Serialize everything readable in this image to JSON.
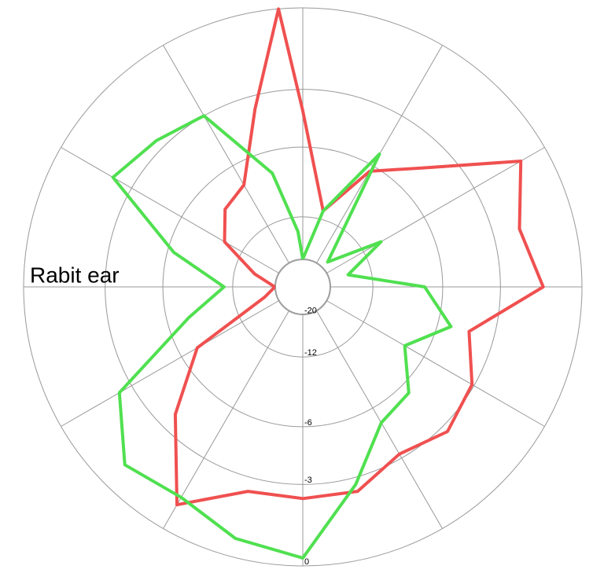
{
  "chart_data": {
    "type": "polar",
    "radial_scale": "amplitude-db",
    "annotation": "Rabit ear",
    "rlim": [
      -20,
      0
    ],
    "rticks": [
      -20,
      -12,
      -6,
      -3,
      0
    ],
    "theta": [
      0,
      15,
      30,
      45,
      60,
      75,
      90,
      105,
      120,
      135,
      150,
      165,
      180,
      195,
      210,
      225,
      240,
      255,
      270,
      285,
      300,
      315,
      330,
      345,
      355
    ],
    "series": [
      {
        "color": "#f05050",
        "values": [
          -4.0,
          -11,
          -6.4,
          -4.4,
          -0.9,
          -1.9,
          -1.3,
          -4.2,
          -3.1,
          -2.7,
          -3.2,
          -2.4,
          -2.4,
          -2.4,
          -0.9,
          -3.8,
          -7.2,
          -17,
          -20,
          -15,
          -9.8,
          -8.1,
          -7.5,
          -3.6,
          0
        ]
      },
      {
        "color": "#50e050",
        "values": [
          -20,
          -11,
          -5.2,
          -18,
          -9.8,
          -15.5,
          -7.2,
          -5.2,
          -7.5,
          -5.4,
          -5.0,
          -2.7,
          -0.25,
          -0.6,
          -1.2,
          -0.9,
          -2.4,
          -7.5,
          -11,
          -6.4,
          -2.1,
          -2.6,
          -3.0,
          -7.5,
          -14
        ]
      }
    ]
  }
}
